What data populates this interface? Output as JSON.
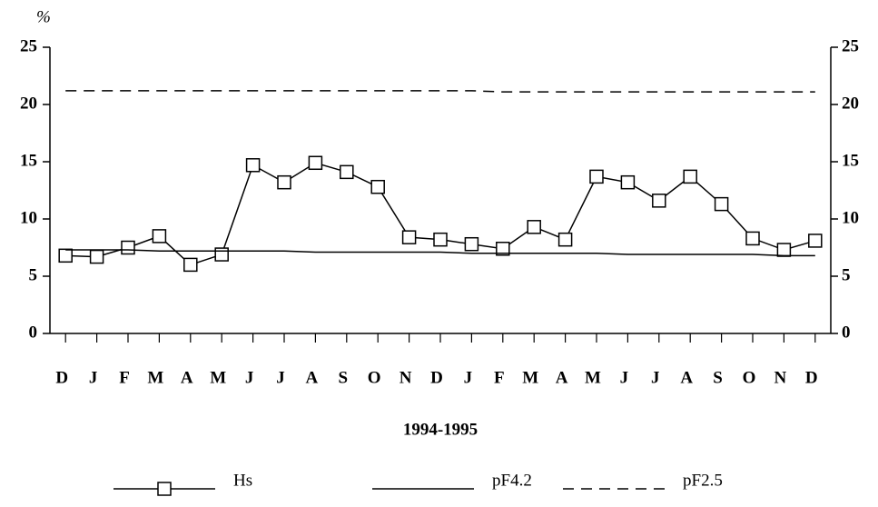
{
  "chart_data": {
    "type": "line",
    "y_unit_label": "%",
    "x_label": "1994-1995",
    "categories": [
      "D",
      "J",
      "F",
      "M",
      "A",
      "M",
      "J",
      "J",
      "A",
      "S",
      "O",
      "N",
      "D",
      "J",
      "F",
      "M",
      "A",
      "M",
      "J",
      "J",
      "A",
      "S",
      "O",
      "N",
      "D"
    ],
    "series": [
      {
        "name": "Hs",
        "color": "#000000",
        "marker": "square",
        "linestyle": "solid",
        "values": [
          6.8,
          6.7,
          7.5,
          8.5,
          6.0,
          6.9,
          14.7,
          13.2,
          14.9,
          14.1,
          12.8,
          8.4,
          8.2,
          7.8,
          7.4,
          9.3,
          8.2,
          13.7,
          13.2,
          11.6,
          13.7,
          11.3,
          8.3,
          7.3,
          8.1
        ]
      },
      {
        "name": "pF4.2",
        "color": "#000000",
        "linestyle": "solid",
        "values": [
          7.3,
          7.3,
          7.3,
          7.2,
          7.2,
          7.2,
          7.2,
          7.2,
          7.1,
          7.1,
          7.1,
          7.1,
          7.1,
          7.0,
          7.0,
          7.0,
          7.0,
          7.0,
          6.9,
          6.9,
          6.9,
          6.9,
          6.9,
          6.8,
          6.8
        ]
      },
      {
        "name": "pF2.5",
        "color": "#000000",
        "linestyle": "dashed",
        "values": [
          21.2,
          21.2,
          21.2,
          21.2,
          21.2,
          21.2,
          21.2,
          21.2,
          21.2,
          21.2,
          21.2,
          21.2,
          21.2,
          21.2,
          21.1,
          21.1,
          21.1,
          21.1,
          21.1,
          21.1,
          21.1,
          21.1,
          21.1,
          21.1,
          21.1
        ]
      }
    ],
    "ylim": [
      0,
      25
    ],
    "yticks": [
      0,
      5,
      10,
      15,
      20,
      25
    ],
    "y2lim": [
      0,
      25
    ],
    "y2ticks": [
      0,
      5,
      10,
      15,
      20,
      25
    ],
    "grid": false,
    "legend": "bottom"
  }
}
